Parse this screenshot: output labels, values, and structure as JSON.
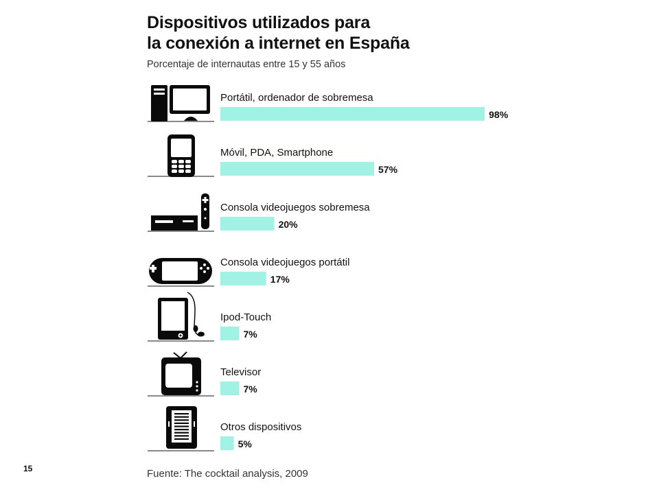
{
  "title_line1": "Dispositivos utilizados para",
  "title_line2": "la conexión a internet en España",
  "subtitle": "Porcentaje de internautas entre 15 y 55 años",
  "page_number": "15",
  "source": "Fuente: The cocktail analysis, 2009",
  "colors": {
    "bar": "#a0f3e4",
    "icon": "#0a0a0a"
  },
  "chart_data": {
    "type": "bar",
    "orientation": "horizontal",
    "title": "Dispositivos utilizados para la conexión a internet en España",
    "subtitle": "Porcentaje de internautas entre 15 y 55 años",
    "unit": "%",
    "categories": [
      "Portátil, ordenador de sobremesa",
      "Móvil, PDA, Smartphone",
      "Consola videojuegos sobremesa",
      "Consola videojuegos portátil",
      "Ipod-Touch",
      "Televisor",
      "Otros dispositivos"
    ],
    "values": [
      98,
      57,
      20,
      17,
      7,
      7,
      5
    ],
    "value_labels": [
      "98%",
      "57%",
      "20%",
      "17%",
      "7%",
      "7%",
      "5%"
    ],
    "icons": [
      "desktop-computer-icon",
      "mobile-phone-icon",
      "game-console-icon",
      "handheld-console-icon",
      "ipod-touch-icon",
      "television-icon",
      "ereader-icon"
    ],
    "xlim": [
      0,
      100
    ],
    "grid": false,
    "legend": "none"
  }
}
